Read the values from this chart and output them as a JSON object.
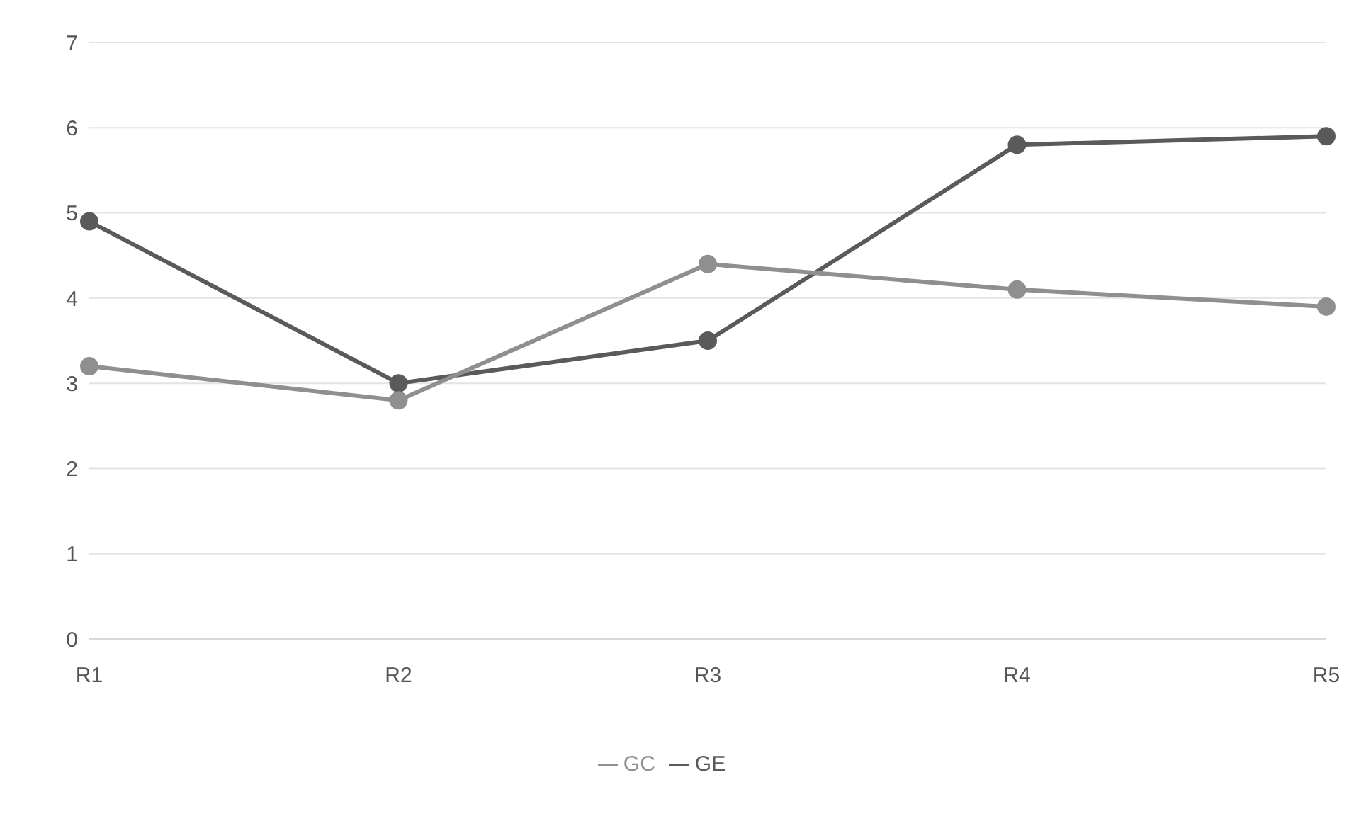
{
  "chart_data": {
    "type": "line",
    "categories": [
      "R1",
      "R2",
      "R3",
      "R4",
      "R5"
    ],
    "series": [
      {
        "name": "GE",
        "color": "#5a5a5a",
        "values": [
          4.9,
          3.0,
          3.5,
          5.8,
          5.9
        ]
      },
      {
        "name": "GC",
        "color": "#8f8f8f",
        "values": [
          3.2,
          2.8,
          4.4,
          4.1,
          3.9
        ]
      }
    ],
    "ylim": [
      0,
      7
    ],
    "yticks": [
      0,
      1,
      2,
      3,
      4,
      5,
      6,
      7
    ],
    "grid": "y",
    "legend": "bottom",
    "marker": "circle",
    "line_style": "solid"
  }
}
